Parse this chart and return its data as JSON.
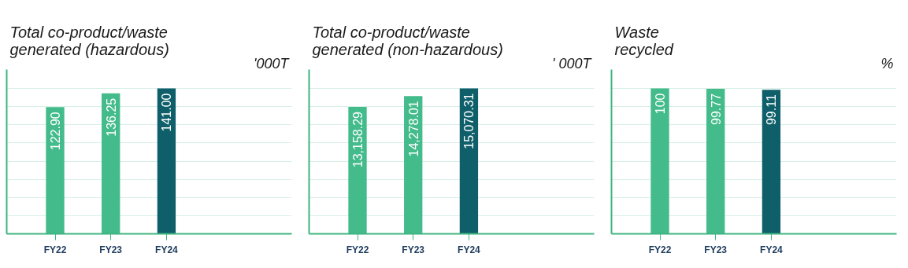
{
  "chart_data": [
    {
      "type": "bar",
      "title": "Total co-product/waste\ngenerated (hazardous)",
      "annotations": [
        "'000T"
      ],
      "categories": [
        "FY22",
        "FY23",
        "FY24"
      ],
      "values": [
        122.9,
        136.25,
        141.0
      ],
      "value_labels": [
        "122.90",
        "136.25",
        "141.00"
      ],
      "colors": [
        "#43bb8b",
        "#43bb8b",
        "#0f5f6a"
      ],
      "grid": "y",
      "tick_labels": "x"
    },
    {
      "type": "bar",
      "title": "Total co-product/waste\ngenerated (non-hazardous)",
      "annotations": [
        "' 000T"
      ],
      "categories": [
        "FY22",
        "FY23",
        "FY24"
      ],
      "values": [
        13158.29,
        14278.01,
        15070.31
      ],
      "value_labels": [
        "13,158.29",
        "14,278.01",
        "15,070.31"
      ],
      "colors": [
        "#43bb8b",
        "#43bb8b",
        "#0f5f6a"
      ],
      "grid": "y",
      "tick_labels": "x"
    },
    {
      "type": "bar",
      "title": "Waste\nrecycled",
      "annotations": [
        "%"
      ],
      "categories": [
        "FY22",
        "FY23",
        "FY24"
      ],
      "values": [
        100,
        99.77,
        99.11
      ],
      "value_labels": [
        "100",
        "99.77",
        "99.11"
      ],
      "colors": [
        "#43bb8b",
        "#43bb8b",
        "#0f5f6a"
      ],
      "grid": "y",
      "tick_labels": "x"
    }
  ]
}
